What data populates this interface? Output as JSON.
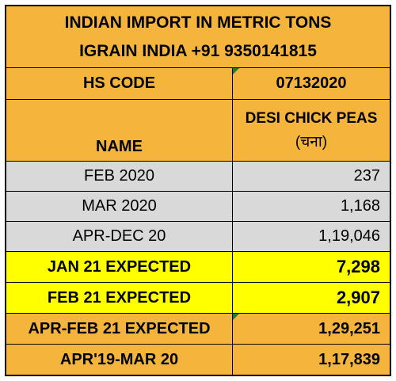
{
  "title": {
    "line1": "INDIAN IMPORT IN METRIC TONS",
    "line2": "IGRAIN INDIA +91 9350141815"
  },
  "hs_code": {
    "label": "HS CODE",
    "value": "07132020"
  },
  "name": {
    "label": "NAME",
    "product_line1": "DESI CHICK PEAS",
    "product_line2": "(चना)"
  },
  "rows": [
    {
      "label": "FEB 2020",
      "value": "237"
    },
    {
      "label": "MAR 2020",
      "value": "1,168"
    },
    {
      "label": "APR-DEC 20",
      "value": "1,19,046"
    },
    {
      "label": "JAN 21 EXPECTED",
      "value": "7,298"
    },
    {
      "label": "FEB 21 EXPECTED",
      "value": "2,907"
    },
    {
      "label": "APR-FEB 21 EXPECTED",
      "value": "1,29,251"
    },
    {
      "label": "APR'19-MAR 20",
      "value": "1,17,839"
    }
  ],
  "colors": {
    "header": "#f5b43c",
    "data": "#d9d9d9",
    "expected": "#ffff00"
  }
}
